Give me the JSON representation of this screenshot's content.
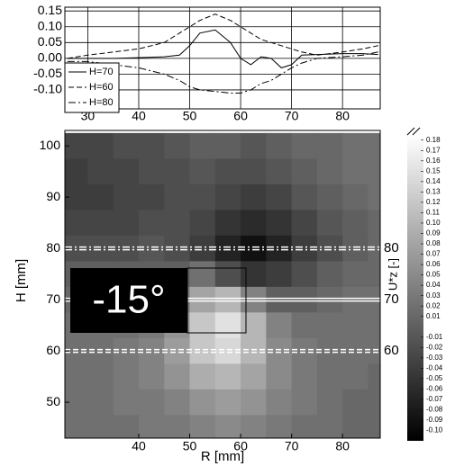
{
  "chart_data": [
    {
      "type": "line",
      "x": [
        26,
        30,
        35,
        40,
        45,
        48,
        50,
        52,
        55,
        58,
        60,
        62,
        64,
        66,
        68,
        70,
        72,
        75,
        80,
        84,
        87
      ],
      "series": [
        {
          "name": "H=70",
          "color": "#000000",
          "style": "solid",
          "values": [
            0.0,
            0.0,
            0.0,
            0.002,
            0.005,
            0.01,
            0.04,
            0.08,
            0.09,
            0.05,
            0.0,
            -0.02,
            0.005,
            0.0,
            -0.03,
            -0.02,
            0.01,
            0.012,
            0.015,
            0.015,
            0.012
          ]
        },
        {
          "name": "H=60",
          "color": "#000000",
          "style": "dashed",
          "values": [
            0.0,
            0.01,
            0.02,
            0.03,
            0.05,
            0.08,
            0.1,
            0.12,
            0.14,
            0.12,
            0.1,
            0.08,
            0.06,
            0.05,
            0.04,
            0.03,
            0.02,
            0.01,
            0.02,
            0.03,
            0.04
          ]
        },
        {
          "name": "H=80",
          "color": "#000000",
          "style": "dashdot",
          "values": [
            -0.01,
            -0.01,
            -0.02,
            -0.03,
            -0.05,
            -0.07,
            -0.09,
            -0.1,
            -0.105,
            -0.11,
            -0.11,
            -0.1,
            -0.08,
            -0.07,
            -0.05,
            -0.03,
            -0.015,
            0.0,
            0.005,
            0.01,
            0.02
          ]
        }
      ],
      "xlim": [
        25.5,
        87.4
      ],
      "ylim": [
        -0.16,
        0.162
      ],
      "xticks": [
        30,
        40,
        50,
        60,
        70,
        80
      ],
      "yticks": [
        {
          "value": -0.1,
          "label": "-0.10"
        },
        {
          "value": -0.05,
          "label": "-0.05"
        },
        {
          "value": 0,
          "label": "0.00"
        },
        {
          "value": 0.05,
          "label": "0.05"
        },
        {
          "value": 0.1,
          "label": "0.10"
        },
        {
          "value": 0.15,
          "label": "0.15"
        }
      ],
      "grid": true,
      "legend": "lower left"
    },
    {
      "type": "heatmap",
      "x_label": "R [mm]",
      "y_label": "H [mm]",
      "colorbar_label": "U*z [-]",
      "annotation": "-15°",
      "x": [
        27.5,
        32.5,
        37.5,
        42.5,
        47.5,
        52.5,
        57.5,
        62.5,
        67.5,
        72.5,
        77.5,
        82.5,
        87.5
      ],
      "y": [
        100,
        95,
        90,
        85,
        80,
        75,
        70,
        65,
        60,
        55,
        50,
        45
      ],
      "z": [
        [
          -0.03,
          -0.03,
          -0.02,
          -0.02,
          -0.01,
          0.0,
          0.0,
          -0.01,
          0.0,
          0.01,
          0.01,
          0.02,
          0.02
        ],
        [
          -0.04,
          -0.03,
          -0.03,
          -0.02,
          -0.02,
          -0.01,
          -0.02,
          -0.02,
          -0.01,
          0.0,
          0.01,
          0.02,
          0.02
        ],
        [
          -0.04,
          -0.04,
          -0.03,
          -0.03,
          -0.02,
          -0.02,
          -0.03,
          -0.04,
          -0.03,
          -0.01,
          0.0,
          0.01,
          0.02
        ],
        [
          -0.03,
          -0.03,
          -0.03,
          -0.02,
          -0.02,
          -0.03,
          -0.05,
          -0.06,
          -0.05,
          -0.03,
          -0.01,
          0.0,
          0.01
        ],
        [
          -0.02,
          -0.02,
          -0.02,
          -0.01,
          -0.02,
          -0.04,
          -0.07,
          -0.09,
          -0.07,
          -0.04,
          -0.02,
          0.0,
          0.01
        ],
        [
          0.0,
          0.0,
          0.0,
          0.0,
          0.0,
          0.02,
          -0.02,
          -0.05,
          -0.04,
          -0.02,
          0.0,
          0.01,
          0.01
        ],
        [
          0.01,
          0.01,
          0.01,
          0.02,
          0.03,
          0.08,
          0.1,
          0.04,
          0.0,
          0.0,
          0.01,
          0.02,
          0.02
        ],
        [
          0.02,
          0.02,
          0.02,
          0.03,
          0.06,
          0.12,
          0.15,
          0.1,
          0.04,
          0.02,
          0.02,
          0.02,
          0.02
        ],
        [
          0.02,
          0.02,
          0.03,
          0.04,
          0.07,
          0.12,
          0.14,
          0.1,
          0.05,
          0.03,
          0.02,
          0.02,
          0.02
        ],
        [
          0.02,
          0.02,
          0.03,
          0.04,
          0.06,
          0.09,
          0.1,
          0.08,
          0.05,
          0.03,
          0.02,
          0.02,
          0.01
        ],
        [
          0.02,
          0.02,
          0.03,
          0.03,
          0.04,
          0.06,
          0.07,
          0.06,
          0.04,
          0.03,
          0.02,
          0.01,
          0.01
        ],
        [
          0.02,
          0.02,
          0.02,
          0.03,
          0.03,
          0.04,
          0.05,
          0.04,
          0.03,
          0.02,
          0.02,
          0.01,
          0.01
        ]
      ],
      "cell": [
        5,
        5
      ],
      "xlim": [
        25.5,
        87.4
      ],
      "ylim": [
        43,
        103
      ],
      "xticks": [
        40,
        50,
        60,
        70,
        80
      ],
      "yticks": [
        50,
        60,
        70,
        80,
        90,
        100
      ],
      "zlim": [
        -0.11,
        0.185
      ],
      "colormap": [
        "#000000",
        "#ffffff"
      ],
      "zticks": [
        {
          "value": 0.18,
          "label": "0.18"
        },
        {
          "value": 0.17,
          "label": "0.17"
        },
        {
          "value": 0.16,
          "label": "0.16"
        },
        {
          "value": 0.15,
          "label": "0.15"
        },
        {
          "value": 0.14,
          "label": "0.14"
        },
        {
          "value": 0.13,
          "label": "0.13"
        },
        {
          "value": 0.12,
          "label": "0.12"
        },
        {
          "value": 0.11,
          "label": "0.11"
        },
        {
          "value": 0.1,
          "label": "0.10"
        },
        {
          "value": 0.09,
          "label": "0.09"
        },
        {
          "value": 0.08,
          "label": "0.08"
        },
        {
          "value": 0.07,
          "label": "0.07"
        },
        {
          "value": 0.06,
          "label": "0.06"
        },
        {
          "value": 0.05,
          "label": "0.05"
        },
        {
          "value": 0.04,
          "label": "0.04"
        },
        {
          "value": 0.03,
          "label": "0.03"
        },
        {
          "value": 0.02,
          "label": "0.02"
        },
        {
          "value": 0.01,
          "label": "0.01"
        },
        {
          "value": -0.01,
          "label": "-0.01"
        },
        {
          "value": -0.02,
          "label": "-0.02"
        },
        {
          "value": -0.03,
          "label": "-0.03"
        },
        {
          "value": -0.04,
          "label": "-0.04"
        },
        {
          "value": -0.05,
          "label": "-0.05"
        },
        {
          "value": -0.06,
          "label": "-0.06"
        },
        {
          "value": -0.07,
          "label": "-0.07"
        },
        {
          "value": -0.08,
          "label": "-0.08"
        },
        {
          "value": -0.09,
          "label": "-0.09"
        },
        {
          "value": -0.1,
          "label": "-0.10"
        }
      ],
      "profile_lines": [
        {
          "value": 80,
          "style": "dashdot"
        },
        {
          "value": 70,
          "style": "solid"
        },
        {
          "value": 60,
          "style": "dashed"
        }
      ]
    }
  ]
}
